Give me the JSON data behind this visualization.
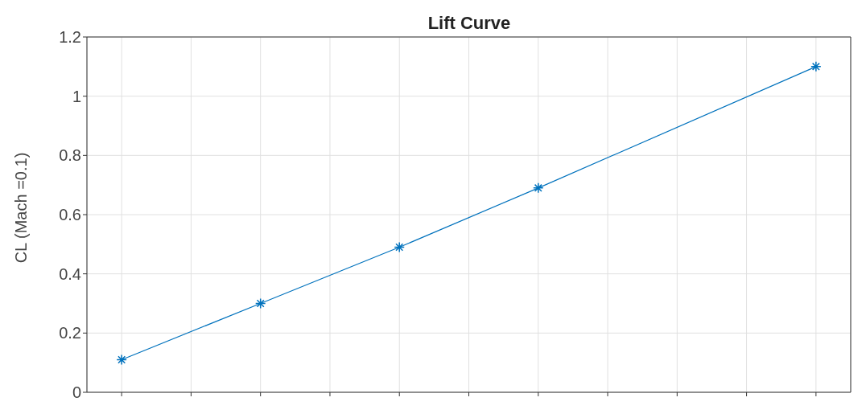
{
  "chart_data": {
    "type": "line",
    "title": "Lift Curve",
    "ylabel": "CL (Mach =0.1)",
    "categories": [
      null,
      null,
      null,
      null,
      null,
      null,
      null,
      null,
      null,
      null,
      null
    ],
    "series": [
      {
        "color": "#0072bd",
        "values": [
          0.11,
          null,
          0.3,
          null,
          0.49,
          null,
          0.69,
          null,
          null,
          null,
          1.1
        ]
      }
    ],
    "ylim": [
      0,
      1.2
    ],
    "yticks": [
      0,
      0.2,
      0.4,
      0.6,
      0.8,
      1,
      1.2
    ],
    "grid": true,
    "marker": "cross",
    "line_style": "solid",
    "tick_labels": "y",
    "legend": false
  }
}
